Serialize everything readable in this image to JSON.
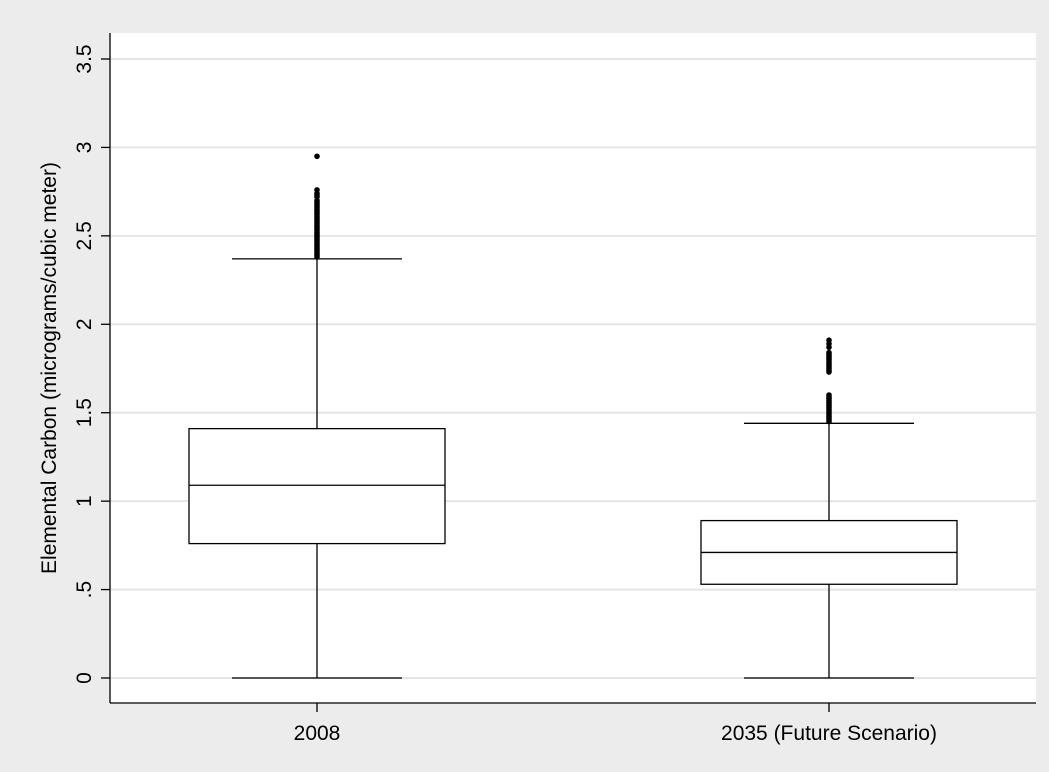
{
  "chart_data": {
    "type": "box",
    "title": "",
    "xlabel": "",
    "ylabel": "Elemental Carbon (micrograms/cubic meter)",
    "ylim": [
      0,
      3.5
    ],
    "y_ticks": [
      {
        "value": 0,
        "label": "0"
      },
      {
        "value": 0.5,
        "label": ".5"
      },
      {
        "value": 1,
        "label": "1"
      },
      {
        "value": 1.5,
        "label": "1.5"
      },
      {
        "value": 2,
        "label": "2"
      },
      {
        "value": 2.5,
        "label": "2.5"
      },
      {
        "value": 3,
        "label": "3"
      },
      {
        "value": 3.5,
        "label": "3.5"
      }
    ],
    "grid": true,
    "categories": [
      "2008",
      "2035 (Future Scenario)"
    ],
    "boxes": [
      {
        "category": "2008",
        "whisker_low": 0,
        "q1": 0.76,
        "median": 1.09,
        "q3": 1.41,
        "whisker_high": 2.37,
        "outliers": [
          2.38,
          2.39,
          2.4,
          2.41,
          2.42,
          2.43,
          2.44,
          2.45,
          2.46,
          2.47,
          2.48,
          2.49,
          2.5,
          2.51,
          2.52,
          2.53,
          2.54,
          2.55,
          2.56,
          2.57,
          2.58,
          2.59,
          2.6,
          2.61,
          2.62,
          2.63,
          2.64,
          2.65,
          2.66,
          2.67,
          2.68,
          2.69,
          2.7,
          2.72,
          2.73,
          2.74,
          2.76,
          2.95
        ]
      },
      {
        "category": "2035 (Future Scenario)",
        "whisker_low": 0,
        "q1": 0.53,
        "median": 0.71,
        "q3": 0.89,
        "whisker_high": 1.44,
        "outliers": [
          1.45,
          1.46,
          1.47,
          1.48,
          1.49,
          1.5,
          1.51,
          1.52,
          1.53,
          1.54,
          1.55,
          1.56,
          1.57,
          1.58,
          1.59,
          1.6,
          1.73,
          1.74,
          1.75,
          1.76,
          1.77,
          1.78,
          1.79,
          1.8,
          1.81,
          1.82,
          1.83,
          1.84,
          1.87,
          1.89,
          1.91
        ]
      }
    ]
  }
}
